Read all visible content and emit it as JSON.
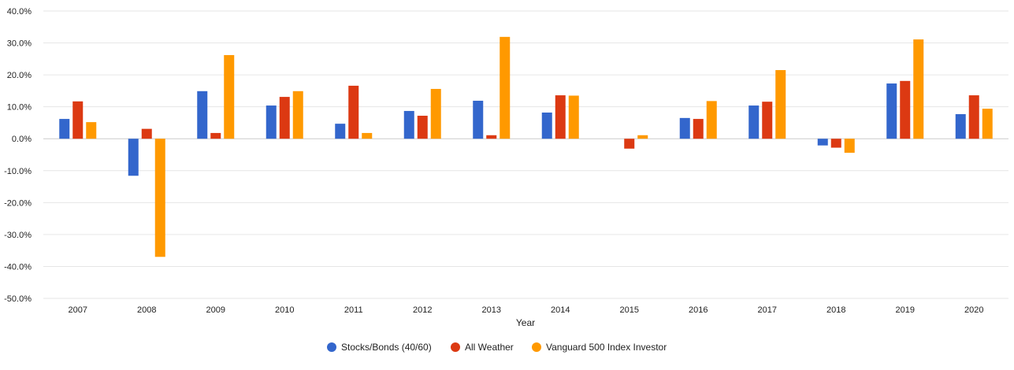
{
  "chart_data": {
    "type": "bar",
    "title": "",
    "xlabel": "Year",
    "ylabel": "",
    "ylim": [
      -50,
      40
    ],
    "yticks": [
      40,
      30,
      20,
      10,
      0,
      -10,
      -20,
      -30,
      -40,
      -50
    ],
    "ytick_labels": [
      "40.0%",
      "30.0%",
      "20.0%",
      "10.0%",
      "0.0%",
      "-10.0%",
      "-20.0%",
      "-30.0%",
      "-40.0%",
      "-50.0%"
    ],
    "grid": true,
    "legend_position": "bottom",
    "categories": [
      "2007",
      "2008",
      "2009",
      "2010",
      "2011",
      "2012",
      "2013",
      "2014",
      "2015",
      "2016",
      "2017",
      "2018",
      "2019",
      "2020"
    ],
    "series": [
      {
        "name": "Stocks/Bonds (40/60)",
        "color": "#3366cc",
        "values": [
          6.2,
          -11.6,
          14.9,
          10.4,
          4.7,
          8.7,
          11.9,
          8.2,
          0.0,
          6.5,
          10.4,
          -2.1,
          17.3,
          7.7
        ]
      },
      {
        "name": "All Weather",
        "color": "#dc3912",
        "values": [
          11.7,
          3.1,
          1.8,
          13.1,
          16.6,
          7.2,
          1.1,
          13.6,
          -3.1,
          6.2,
          11.6,
          -2.8,
          18.1,
          13.6
        ]
      },
      {
        "name": "Vanguard 500 Index Investor",
        "color": "#ff9900",
        "values": [
          5.2,
          -37.0,
          26.2,
          14.9,
          1.8,
          15.6,
          31.9,
          13.5,
          1.1,
          11.8,
          21.5,
          -4.4,
          31.1,
          9.4
        ]
      }
    ]
  }
}
